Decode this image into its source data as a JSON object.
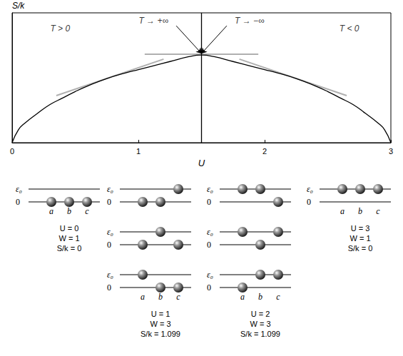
{
  "chart_data": {
    "type": "line",
    "x_label": "U",
    "y_label": "S/k",
    "xlim": [
      0,
      3
    ],
    "xticks": [
      0,
      1,
      2,
      3
    ],
    "ylim": [
      0,
      1.6
    ],
    "tick_labels": "x",
    "grid": false,
    "series": [
      {
        "color": "#000000",
        "line_style": "solid",
        "x": [
          0,
          0.05,
          0.1,
          0.2,
          0.3,
          0.4,
          0.5,
          0.6,
          0.75,
          0.9,
          1.0,
          1.1,
          1.25,
          1.4,
          1.5,
          1.6,
          1.75,
          1.9,
          2.0,
          2.1,
          2.25,
          2.4,
          2.5,
          2.6,
          2.7,
          2.8,
          2.9,
          2.95,
          3
        ],
        "values": [
          0,
          0.16,
          0.24,
          0.36,
          0.47,
          0.55,
          0.63,
          0.7,
          0.79,
          0.86,
          0.9,
          0.94,
          1.0,
          1.06,
          1.08,
          1.06,
          1.0,
          0.94,
          0.9,
          0.86,
          0.79,
          0.7,
          0.63,
          0.55,
          0.47,
          0.36,
          0.24,
          0.16,
          0
        ]
      },
      {
        "color": "#b0b0b0",
        "line_style": "solid",
        "x": [
          0.35,
          1.2
        ],
        "values": [
          0.58,
          1.03
        ]
      },
      {
        "color": "#b0b0b0",
        "line_style": "solid",
        "x": [
          1.05,
          1.95
        ],
        "values": [
          1.09,
          1.09
        ]
      },
      {
        "color": "#b0b0b0",
        "line_style": "solid",
        "x": [
          1.8,
          2.65
        ],
        "values": [
          1.03,
          0.58
        ]
      },
      {
        "color": "#000000",
        "line_style": "solid",
        "x": [
          1.5,
          1.5
        ],
        "values": [
          0,
          1.6
        ]
      }
    ],
    "annotations": [
      {
        "text": "T > 0",
        "x": 0.38,
        "y": 1.41
      },
      {
        "text": "T → +∞",
        "x": 1.12,
        "y": 1.5,
        "arrow": [
          [
            1.3,
            1.44
          ],
          [
            1.5,
            1.1
          ]
        ]
      },
      {
        "text": "T → −∞",
        "x": 1.88,
        "y": 1.5,
        "arrow": [
          [
            1.7,
            1.44
          ],
          [
            1.5,
            1.1
          ]
        ]
      },
      {
        "text": "T < 0",
        "x": 2.67,
        "y": 1.41
      }
    ]
  },
  "diagram": {
    "level_labels": [
      "ε₀",
      "0"
    ],
    "particle_labels": [
      "a",
      "b",
      "c"
    ],
    "columns": [
      {
        "states": [
          [
            1,
            1,
            1
          ]
        ],
        "labels": [
          "U = 0",
          "W = 1",
          "S/k = 0"
        ]
      },
      {
        "states": [
          [
            1,
            1,
            0
          ],
          [
            1,
            0,
            1
          ],
          [
            0,
            1,
            1
          ]
        ],
        "labels": [
          "U = 1",
          "W = 3",
          "S/k = 1.099"
        ]
      },
      {
        "states": [
          [
            0,
            0,
            1
          ],
          [
            0,
            1,
            0
          ],
          [
            1,
            0,
            0
          ]
        ],
        "labels": [
          "U = 2",
          "W = 3",
          "S/k = 1.099"
        ]
      },
      {
        "states": [
          [
            0,
            0,
            0
          ]
        ],
        "labels": [
          "U = 3",
          "W = 1",
          "S/k = 0"
        ]
      }
    ]
  }
}
